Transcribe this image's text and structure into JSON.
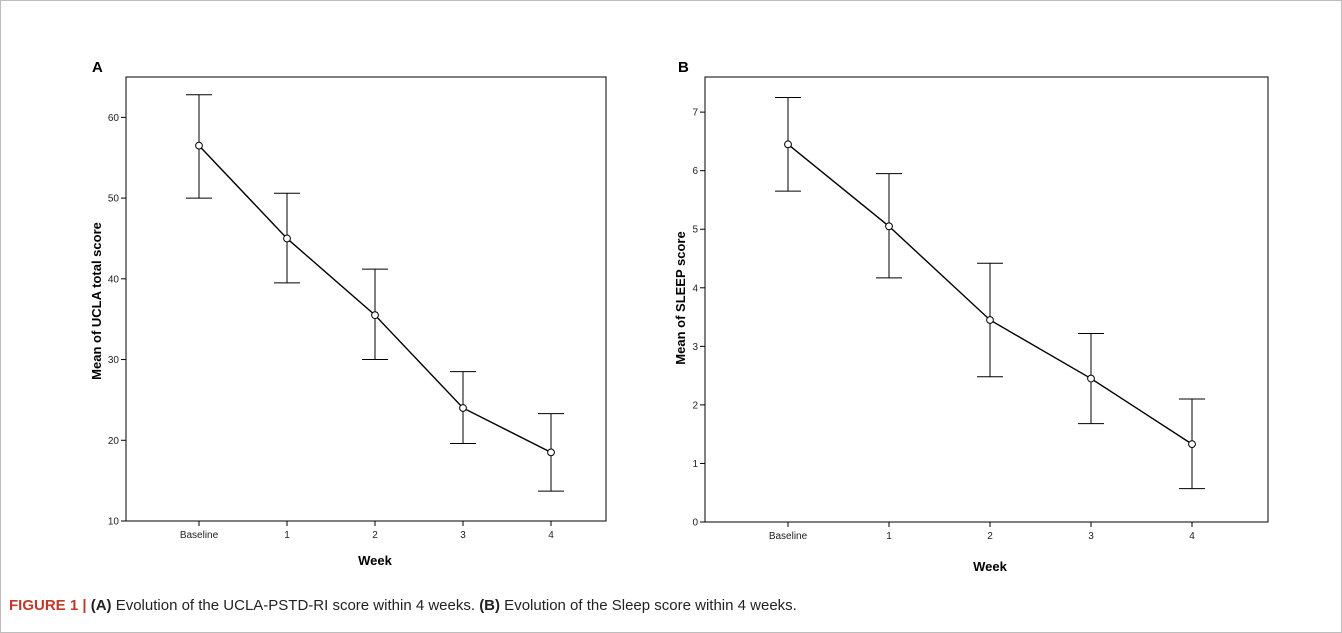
{
  "caption": {
    "label": "FIGURE 1 | ",
    "a_tag": "(A)",
    "a_text": " Evolution of the UCLA-PSTD-RI score within 4 weeks. ",
    "b_tag": "(B)",
    "b_text": " Evolution of the Sleep score within 4 weeks."
  },
  "chart_data": [
    {
      "panel": "A",
      "type": "line",
      "categories": [
        "Baseline",
        "1",
        "2",
        "3",
        "4"
      ],
      "series": [
        {
          "values": [
            56.5,
            45.0,
            35.5,
            24.0,
            18.5
          ],
          "error_low": [
            50.0,
            39.5,
            30.0,
            19.6,
            13.7
          ],
          "error_high": [
            62.8,
            50.6,
            41.2,
            28.5,
            23.3
          ]
        }
      ],
      "xlabel": "Week",
      "ylabel": "Mean of UCLA total score",
      "ylim": [
        10,
        65
      ],
      "yticks": [
        10,
        20,
        30,
        40,
        50,
        60
      ],
      "grid": false,
      "marker": "open-circle",
      "line_color": "#000000"
    },
    {
      "panel": "B",
      "type": "line",
      "categories": [
        "Baseline",
        "1",
        "2",
        "3",
        "4"
      ],
      "series": [
        {
          "values": [
            6.45,
            5.05,
            3.45,
            2.45,
            1.33
          ],
          "error_low": [
            5.65,
            4.17,
            2.48,
            1.68,
            0.57
          ],
          "error_high": [
            7.25,
            5.95,
            4.42,
            3.22,
            2.1
          ]
        }
      ],
      "xlabel": "Week",
      "ylabel": "Mean of SLEEP score",
      "ylim": [
        0,
        7.6
      ],
      "yticks": [
        0,
        1,
        2,
        3,
        4,
        5,
        6,
        7
      ],
      "grid": false,
      "marker": "open-circle",
      "line_color": "#000000"
    }
  ]
}
